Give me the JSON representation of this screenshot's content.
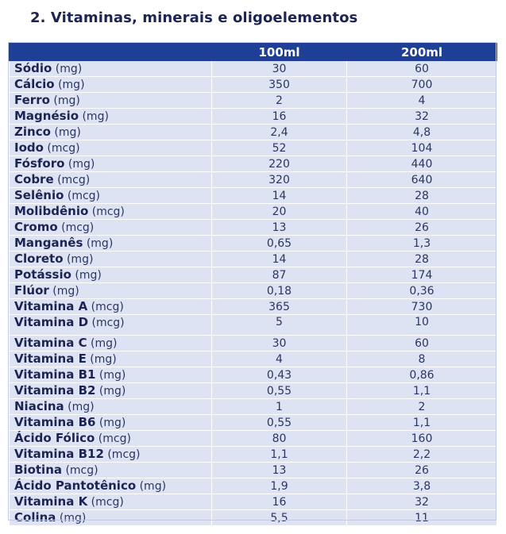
{
  "section_title": "2. Vitaminas, minerais e oligoelementos",
  "table": {
    "headers": [
      "",
      "100ml",
      "200ml"
    ],
    "rows": [
      {
        "name": "Sódio",
        "unit": "(mg)",
        "v100": "30",
        "v200": "60"
      },
      {
        "name": "Cálcio",
        "unit": "(mg)",
        "v100": "350",
        "v200": "700"
      },
      {
        "name": "Ferro",
        "unit": "(mg)",
        "v100": "2",
        "v200": "4"
      },
      {
        "name": "Magnésio",
        "unit": "(mg)",
        "v100": "16",
        "v200": "32"
      },
      {
        "name": "Zinco",
        "unit": "(mg)",
        "v100": "2,4",
        "v200": "4,8"
      },
      {
        "name": "Iodo",
        "unit": "(mcg)",
        "v100": "52",
        "v200": "104"
      },
      {
        "name": "Fósforo",
        "unit": "(mg)",
        "v100": "220",
        "v200": "440"
      },
      {
        "name": "Cobre",
        "unit": "(mcg)",
        "v100": "320",
        "v200": "640"
      },
      {
        "name": "Selênio",
        "unit": "(mcg)",
        "v100": "14",
        "v200": "28"
      },
      {
        "name": "Molibdênio",
        "unit": "(mcg)",
        "v100": "20",
        "v200": "40"
      },
      {
        "name": "Cromo",
        "unit": "(mcg)",
        "v100": "13",
        "v200": "26"
      },
      {
        "name": "Manganês",
        "unit": "(mg)",
        "v100": "0,65",
        "v200": "1,3"
      },
      {
        "name": "Cloreto",
        "unit": "(mg)",
        "v100": "14",
        "v200": "28"
      },
      {
        "name": "Potássio",
        "unit": "(mg)",
        "v100": "87",
        "v200": "174"
      },
      {
        "name": "Flúor",
        "unit": "(mg)",
        "v100": "0,18",
        "v200": "0,36"
      },
      {
        "name": "Vitamina A",
        "unit": "(mcg)",
        "v100": "365",
        "v200": "730"
      },
      {
        "name": "Vitamina D",
        "unit": "(mcg)",
        "v100": "5",
        "v200": "10"
      },
      {
        "name": "Vitamina C",
        "unit": "(mg)",
        "v100": "30",
        "v200": "60"
      },
      {
        "name": "Vitamina E",
        "unit": "(mg)",
        "v100": "4",
        "v200": "8"
      },
      {
        "name": "Vitamina B1",
        "unit": "(mg)",
        "v100": "0,43",
        "v200": "0,86"
      },
      {
        "name": "Vitamina B2",
        "unit": "(mg)",
        "v100": "0,55",
        "v200": "1,1"
      },
      {
        "name": "Niacina",
        "unit": "(mg)",
        "v100": "1",
        "v200": "2"
      },
      {
        "name": "Vitamina B6",
        "unit": "(mg)",
        "v100": "0,55",
        "v200": "1,1"
      },
      {
        "name": "Ácido Fólico",
        "unit": "(mcg)",
        "v100": "80",
        "v200": "160"
      },
      {
        "name": "Vitamina B12",
        "unit": "(mcg)",
        "v100": "1,1",
        "v200": "2,2"
      },
      {
        "name": "Biotina",
        "unit": "(mcg)",
        "v100": "13",
        "v200": "26"
      },
      {
        "name": "Ácido Pantotênico",
        "unit": "(mg)",
        "v100": "1,9",
        "v200": "3,8"
      },
      {
        "name": "Vitamina K",
        "unit": "(mcg)",
        "v100": "16",
        "v200": "32"
      },
      {
        "name": "Colina",
        "unit": "(mg)",
        "v100": "5,5",
        "v200": "11"
      }
    ]
  },
  "colors": {
    "header_bg": "#1f3e95",
    "row_bg": "#dde3f3",
    "title_text": "#1c2452"
  }
}
